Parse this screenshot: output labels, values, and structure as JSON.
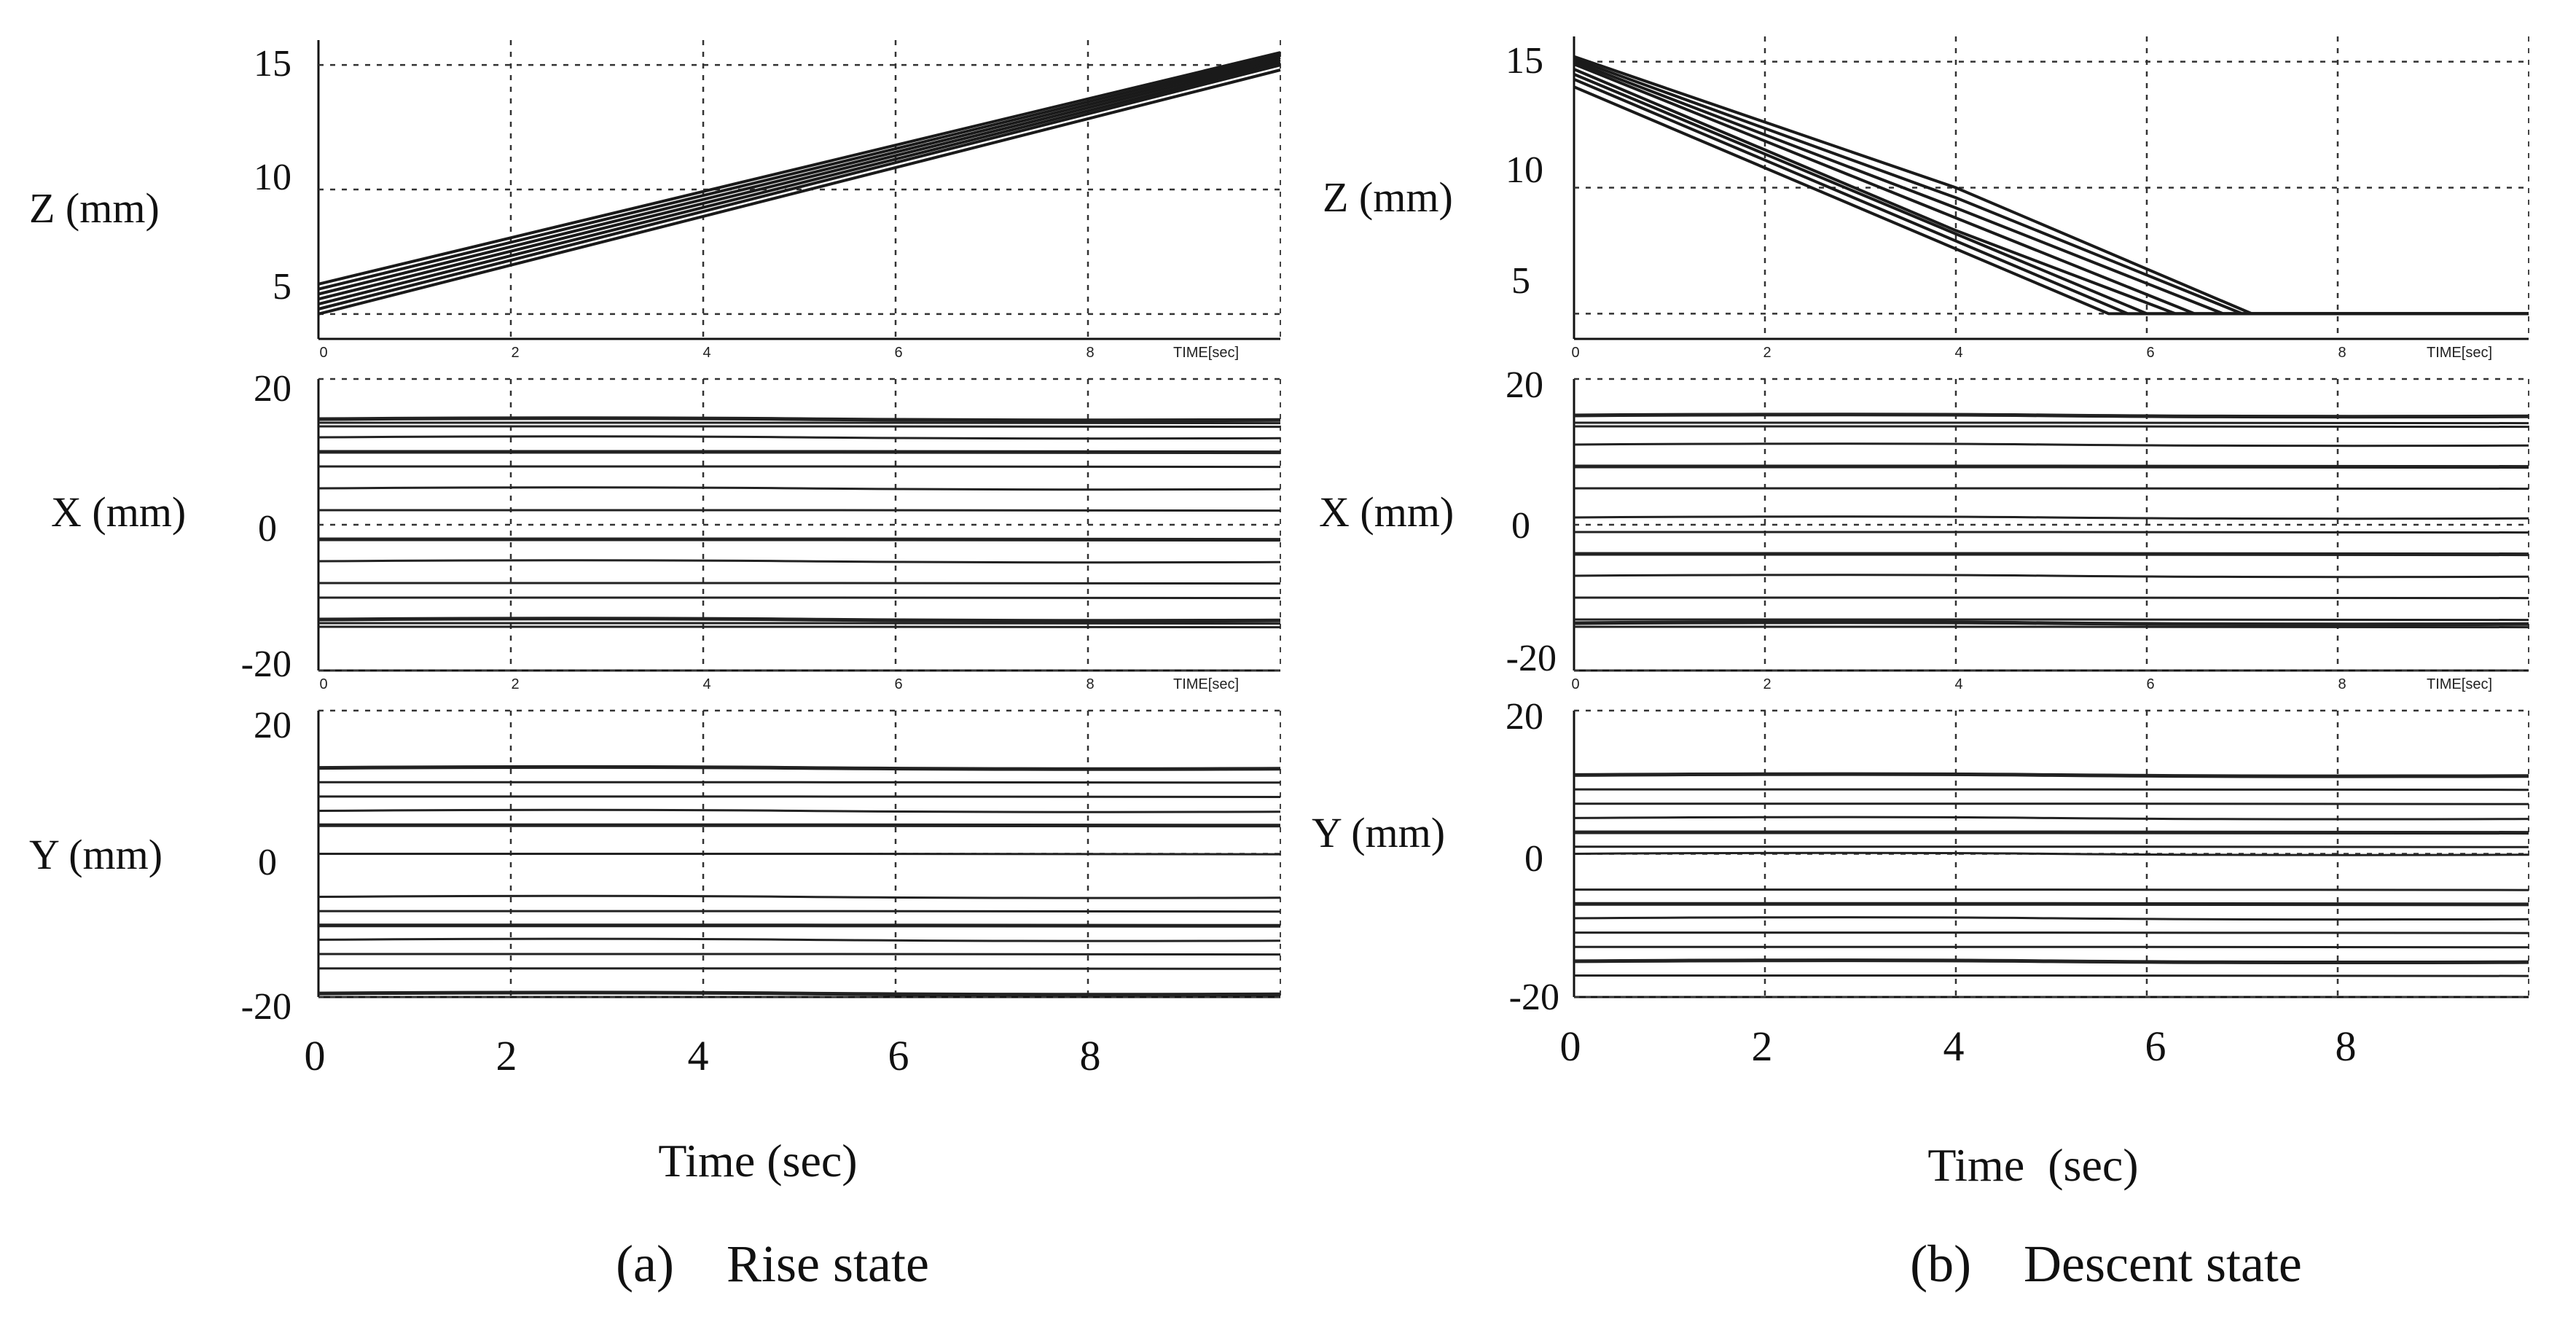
{
  "chart_data": [
    {
      "id": "rise",
      "type": "line",
      "caption": "(a)    Rise state",
      "xlabel": "Time (sec)",
      "x_ticks_bottom": [
        "0",
        "2",
        "4",
        "6",
        "8"
      ],
      "x_ticks_small": [
        "0",
        "2",
        "4",
        "6",
        "8"
      ],
      "time_unit_label": "TIME[sec]",
      "xlim": [
        0,
        10
      ],
      "panels": [
        {
          "id": "z",
          "ylabel": "Z (mm)",
          "ylim": [
            4,
            16
          ],
          "yticks": [
            {
              "v": 15,
              "label": "15"
            },
            {
              "v": 10,
              "label": "10"
            },
            {
              "v": 5,
              "label": "5"
            }
          ],
          "series": [
            {
              "x": [
                0,
                10
              ],
              "y": [
                5.0,
                14.8
              ]
            },
            {
              "x": [
                0,
                10
              ],
              "y": [
                5.2,
                15.0
              ]
            },
            {
              "x": [
                0,
                10
              ],
              "y": [
                5.4,
                15.1
              ]
            },
            {
              "x": [
                0,
                10
              ],
              "y": [
                5.6,
                15.2
              ]
            },
            {
              "x": [
                0,
                10
              ],
              "y": [
                5.8,
                15.3
              ]
            },
            {
              "x": [
                0,
                10
              ],
              "y": [
                6.0,
                15.4
              ]
            },
            {
              "x": [
                0,
                10
              ],
              "y": [
                6.2,
                15.5
              ]
            }
          ]
        },
        {
          "id": "x",
          "ylabel": "X (mm)",
          "ylim": [
            -20,
            20
          ],
          "yticks": [
            {
              "v": 20,
              "label": "20"
            },
            {
              "v": 0,
              "label": "0"
            },
            {
              "v": -20,
              "label": "-20"
            }
          ],
          "levels": [
            14.5,
            14,
            13.5,
            12,
            10,
            8,
            5,
            2,
            -2,
            -5,
            -8,
            -10,
            -13,
            -13.5,
            -14
          ]
        },
        {
          "id": "y",
          "ylabel": "Y (mm)",
          "ylim": [
            -20,
            20
          ],
          "yticks": [
            {
              "v": 20,
              "label": "20"
            },
            {
              "v": 0,
              "label": "0"
            },
            {
              "v": -20,
              "label": "-20"
            }
          ],
          "levels": [
            12,
            10,
            8,
            6,
            4,
            0,
            -6,
            -8,
            -10,
            -12,
            -14,
            -16,
            -19.5
          ]
        }
      ]
    },
    {
      "id": "descent",
      "type": "line",
      "caption": "(b)    Descent state",
      "xlabel": "Time  (sec)",
      "x_ticks_bottom": [
        "0",
        "2",
        "4",
        "6",
        "8"
      ],
      "x_ticks_small": [
        "0",
        "2",
        "4",
        "6",
        "8"
      ],
      "time_unit_label": "TIME[sec]",
      "xlim": [
        0,
        10
      ],
      "panels": [
        {
          "id": "z",
          "ylabel": "Z (mm)",
          "ylim": [
            4,
            16
          ],
          "yticks": [
            {
              "v": 15,
              "label": "15"
            },
            {
              "v": 10,
              "label": "10"
            },
            {
              "v": 5,
              "label": "5"
            }
          ],
          "series": [
            {
              "x": [
                0,
                5.6,
                10
              ],
              "y": [
                14.0,
                5.0,
                5.0
              ]
            },
            {
              "x": [
                0,
                5.8,
                10
              ],
              "y": [
                14.3,
                5.0,
                5.0
              ]
            },
            {
              "x": [
                0,
                6.0,
                10
              ],
              "y": [
                14.5,
                5.0,
                5.0
              ]
            },
            {
              "x": [
                0,
                4.0,
                6.3,
                10
              ],
              "y": [
                14.7,
                8.3,
                5.0,
                5.0
              ]
            },
            {
              "x": [
                0,
                4.0,
                6.5,
                10
              ],
              "y": [
                14.9,
                8.8,
                5.0,
                5.0
              ]
            },
            {
              "x": [
                0,
                4.0,
                6.8,
                10
              ],
              "y": [
                15.0,
                9.2,
                5.0,
                5.0
              ]
            },
            {
              "x": [
                0,
                4.0,
                7.0,
                10
              ],
              "y": [
                15.1,
                9.6,
                5.0,
                5.0
              ]
            },
            {
              "x": [
                0,
                4.0,
                7.1,
                10
              ],
              "y": [
                15.2,
                10.0,
                5.0,
                5.0
              ]
            }
          ]
        },
        {
          "id": "x",
          "ylabel": "X (mm)",
          "ylim": [
            -20,
            20
          ],
          "yticks": [
            {
              "v": 20,
              "label": "20"
            },
            {
              "v": 0,
              "label": "0"
            },
            {
              "v": -20,
              "label": "-20"
            }
          ],
          "levels": [
            15,
            14,
            13.5,
            11,
            8,
            5,
            1,
            -1,
            -4,
            -7,
            -10,
            -13,
            -13.5,
            -14
          ]
        },
        {
          "id": "y",
          "ylabel": "Y (mm)",
          "ylim": [
            -20,
            20
          ],
          "yticks": [
            {
              "v": 20,
              "label": "20"
            },
            {
              "v": 0,
              "label": "0"
            },
            {
              "v": -20,
              "label": "-20"
            }
          ],
          "levels": [
            11,
            9,
            7,
            5,
            3,
            1,
            0,
            -5,
            -7,
            -9,
            -11,
            -13,
            -15,
            -17
          ]
        }
      ]
    }
  ]
}
